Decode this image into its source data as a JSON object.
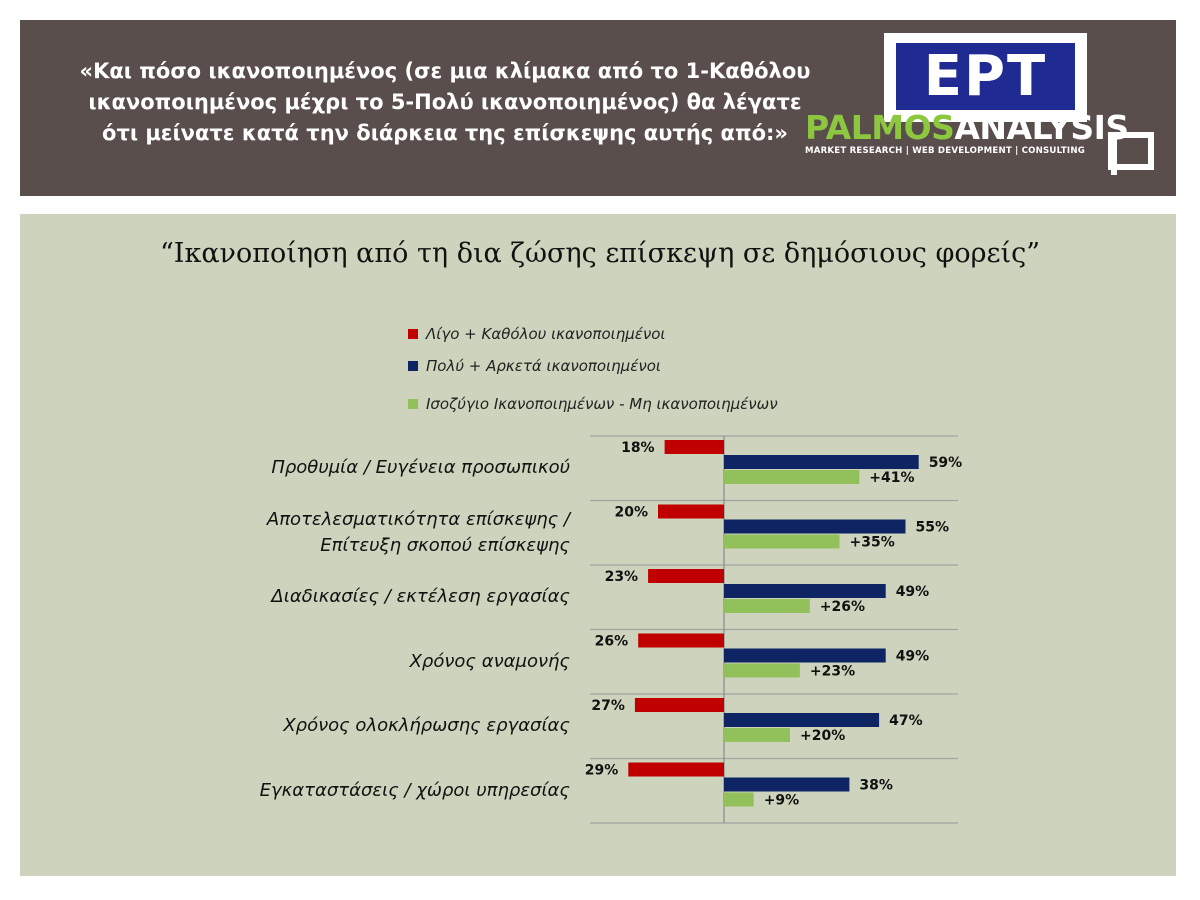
{
  "header": {
    "question_lines": [
      "«Και πόσο ικανοποιημένος (σε μια κλίμακα από το 1-Καθόλου",
      "ικανοποιημένος μέχρι το 5-Πολύ ικανοποιημένος) θα λέγατε",
      "ότι μείνατε κατά την διάρκεια της επίσκεψης αυτής από:»"
    ],
    "ert_logo_text": "ΕΡΤ",
    "palmos_name_part1": "PALMOS",
    "palmos_name_part2": "ANALYSIS",
    "palmos_tagline": "MARKET RESEARCH | WEB DEVELOPMENT | CONSULTING",
    "colors": {
      "background": "#5a4e4d",
      "ert_blue": "#1f2b93",
      "palmos_green": "#8dc63f"
    }
  },
  "chart_data": {
    "type": "bar",
    "orientation": "horizontal",
    "title": "“Ικανοποίηση από τη δια ζώσης επίσκεψη σε δημόσιους φορείς”",
    "categories": [
      [
        "Προθυμία / Ευγένεια προσωπικού"
      ],
      [
        "Αποτελεσματικότητα επίσκεψης /",
        "Επίτευξη σκοπού επίσκεψης"
      ],
      [
        "Διαδικασίες / εκτέλεση εργασίας"
      ],
      [
        "Χρόνος αναμονής"
      ],
      [
        "Χρόνος ολοκλήρωσης εργασίας"
      ],
      [
        "Εγκαταστάσεις / χώροι υπηρεσίας"
      ]
    ],
    "series": [
      {
        "name": "Λίγο + Καθόλου ικανοποιημένοι",
        "color": "#c00000",
        "direction": "negative",
        "values": [
          18,
          20,
          23,
          26,
          27,
          29
        ],
        "labels": [
          "18%",
          "20%",
          "23%",
          "26%",
          "27%",
          "29%"
        ]
      },
      {
        "name": "Πολύ + Αρκετά ικανοποιημένοι",
        "color": "#0f2462",
        "direction": "positive",
        "values": [
          59,
          55,
          49,
          49,
          47,
          38
        ],
        "labels": [
          "59%",
          "55%",
          "49%",
          "49%",
          "47%",
          "38%"
        ]
      },
      {
        "name": "Ισοζύγιο Ικανοποιημένων - Μη ικανοποιημένων",
        "color": "#92c05a",
        "direction": "positive",
        "values": [
          41,
          35,
          26,
          23,
          20,
          9
        ],
        "labels": [
          "+41%",
          "+35%",
          "+26%",
          "+23%",
          "+20%",
          "+9%"
        ]
      }
    ],
    "legend_position": "top",
    "grid": "horizontal separators"
  }
}
